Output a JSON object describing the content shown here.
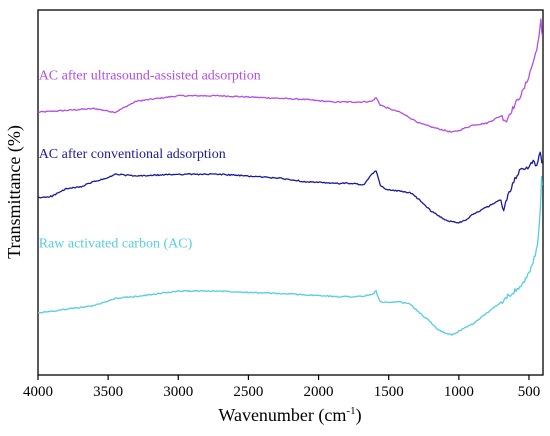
{
  "chart_data": {
    "type": "line",
    "title": "",
    "xlabel": {
      "base": "Wavenumber (cm",
      "sup": "-1",
      "tail": ")"
    },
    "ylabel": "Transmittance (%)",
    "xlim": [
      4000,
      400
    ],
    "x_reversed": true,
    "xticks": [
      4000,
      3500,
      3000,
      2500,
      2000,
      1500,
      1000,
      500
    ],
    "ylim": [
      0,
      100
    ],
    "y_ticks_labeled": false,
    "grid": false,
    "legend": "inline labels above each curve",
    "series": [
      {
        "name": "AC after ultrasound-assisted adsorption",
        "color": "#b44ee6",
        "label_at": {
          "x": 3995,
          "y": 81
        },
        "points": [
          [
            4000,
            72
          ],
          [
            3800,
            72.5
          ],
          [
            3600,
            73
          ],
          [
            3450,
            72
          ],
          [
            3300,
            75
          ],
          [
            3000,
            76.5
          ],
          [
            2700,
            76.5
          ],
          [
            2400,
            76
          ],
          [
            2100,
            75.5
          ],
          [
            1900,
            74.8
          ],
          [
            1700,
            74.8
          ],
          [
            1620,
            75
          ],
          [
            1590,
            76
          ],
          [
            1560,
            74
          ],
          [
            1500,
            73
          ],
          [
            1420,
            72
          ],
          [
            1350,
            70.5
          ],
          [
            1280,
            69
          ],
          [
            1200,
            68
          ],
          [
            1100,
            67
          ],
          [
            1050,
            66.5
          ],
          [
            1000,
            67
          ],
          [
            900,
            68.5
          ],
          [
            800,
            69
          ],
          [
            700,
            71
          ],
          [
            660,
            69.5
          ],
          [
            640,
            71.5
          ],
          [
            600,
            74
          ],
          [
            540,
            78
          ],
          [
            500,
            82
          ],
          [
            460,
            87
          ],
          [
            430,
            92
          ],
          [
            415,
            97
          ],
          [
            405,
            93
          ]
        ]
      },
      {
        "name": "AC after conventional adsorption",
        "color": "#1a1a9e",
        "label_at": {
          "x": 3995,
          "y": 59.5
        },
        "points": [
          [
            4000,
            48.5
          ],
          [
            3900,
            49
          ],
          [
            3800,
            51
          ],
          [
            3700,
            51.5
          ],
          [
            3600,
            53
          ],
          [
            3500,
            54
          ],
          [
            3450,
            55
          ],
          [
            3300,
            54.5
          ],
          [
            3000,
            55
          ],
          [
            2700,
            55
          ],
          [
            2500,
            54.5
          ],
          [
            2300,
            54
          ],
          [
            2100,
            53
          ],
          [
            1900,
            52.5
          ],
          [
            1750,
            52.5
          ],
          [
            1680,
            52
          ],
          [
            1620,
            55
          ],
          [
            1590,
            56
          ],
          [
            1560,
            52
          ],
          [
            1530,
            51
          ],
          [
            1450,
            50.5
          ],
          [
            1350,
            50
          ],
          [
            1280,
            48
          ],
          [
            1200,
            45
          ],
          [
            1100,
            42.5
          ],
          [
            1050,
            42
          ],
          [
            1000,
            41.8
          ],
          [
            950,
            42.5
          ],
          [
            900,
            44
          ],
          [
            800,
            46
          ],
          [
            700,
            48
          ],
          [
            680,
            45
          ],
          [
            650,
            49
          ],
          [
            600,
            54
          ],
          [
            560,
            56
          ],
          [
            500,
            57
          ],
          [
            470,
            59
          ],
          [
            445,
            57
          ],
          [
            420,
            61
          ],
          [
            408,
            58
          ]
        ]
      },
      {
        "name": "Raw activated carbon (AC)",
        "color": "#55cde0",
        "label_at": {
          "x": 3995,
          "y": 35
        },
        "points": [
          [
            4000,
            17
          ],
          [
            3800,
            18
          ],
          [
            3600,
            19
          ],
          [
            3450,
            21
          ],
          [
            3300,
            21.5
          ],
          [
            3000,
            23
          ],
          [
            2700,
            23
          ],
          [
            2400,
            22.5
          ],
          [
            2100,
            22
          ],
          [
            1900,
            21.5
          ],
          [
            1700,
            21.5
          ],
          [
            1620,
            22
          ],
          [
            1590,
            23
          ],
          [
            1560,
            20
          ],
          [
            1500,
            19.8
          ],
          [
            1420,
            20
          ],
          [
            1350,
            19.5
          ],
          [
            1280,
            17
          ],
          [
            1200,
            14.5
          ],
          [
            1150,
            12.5
          ],
          [
            1100,
            11.5
          ],
          [
            1050,
            11
          ],
          [
            1000,
            12
          ],
          [
            900,
            14
          ],
          [
            800,
            17
          ],
          [
            700,
            20
          ],
          [
            600,
            23
          ],
          [
            540,
            25
          ],
          [
            500,
            28
          ],
          [
            470,
            31
          ],
          [
            440,
            35
          ],
          [
            420,
            45
          ],
          [
            410,
            54
          ],
          [
            405,
            52
          ]
        ]
      }
    ]
  }
}
